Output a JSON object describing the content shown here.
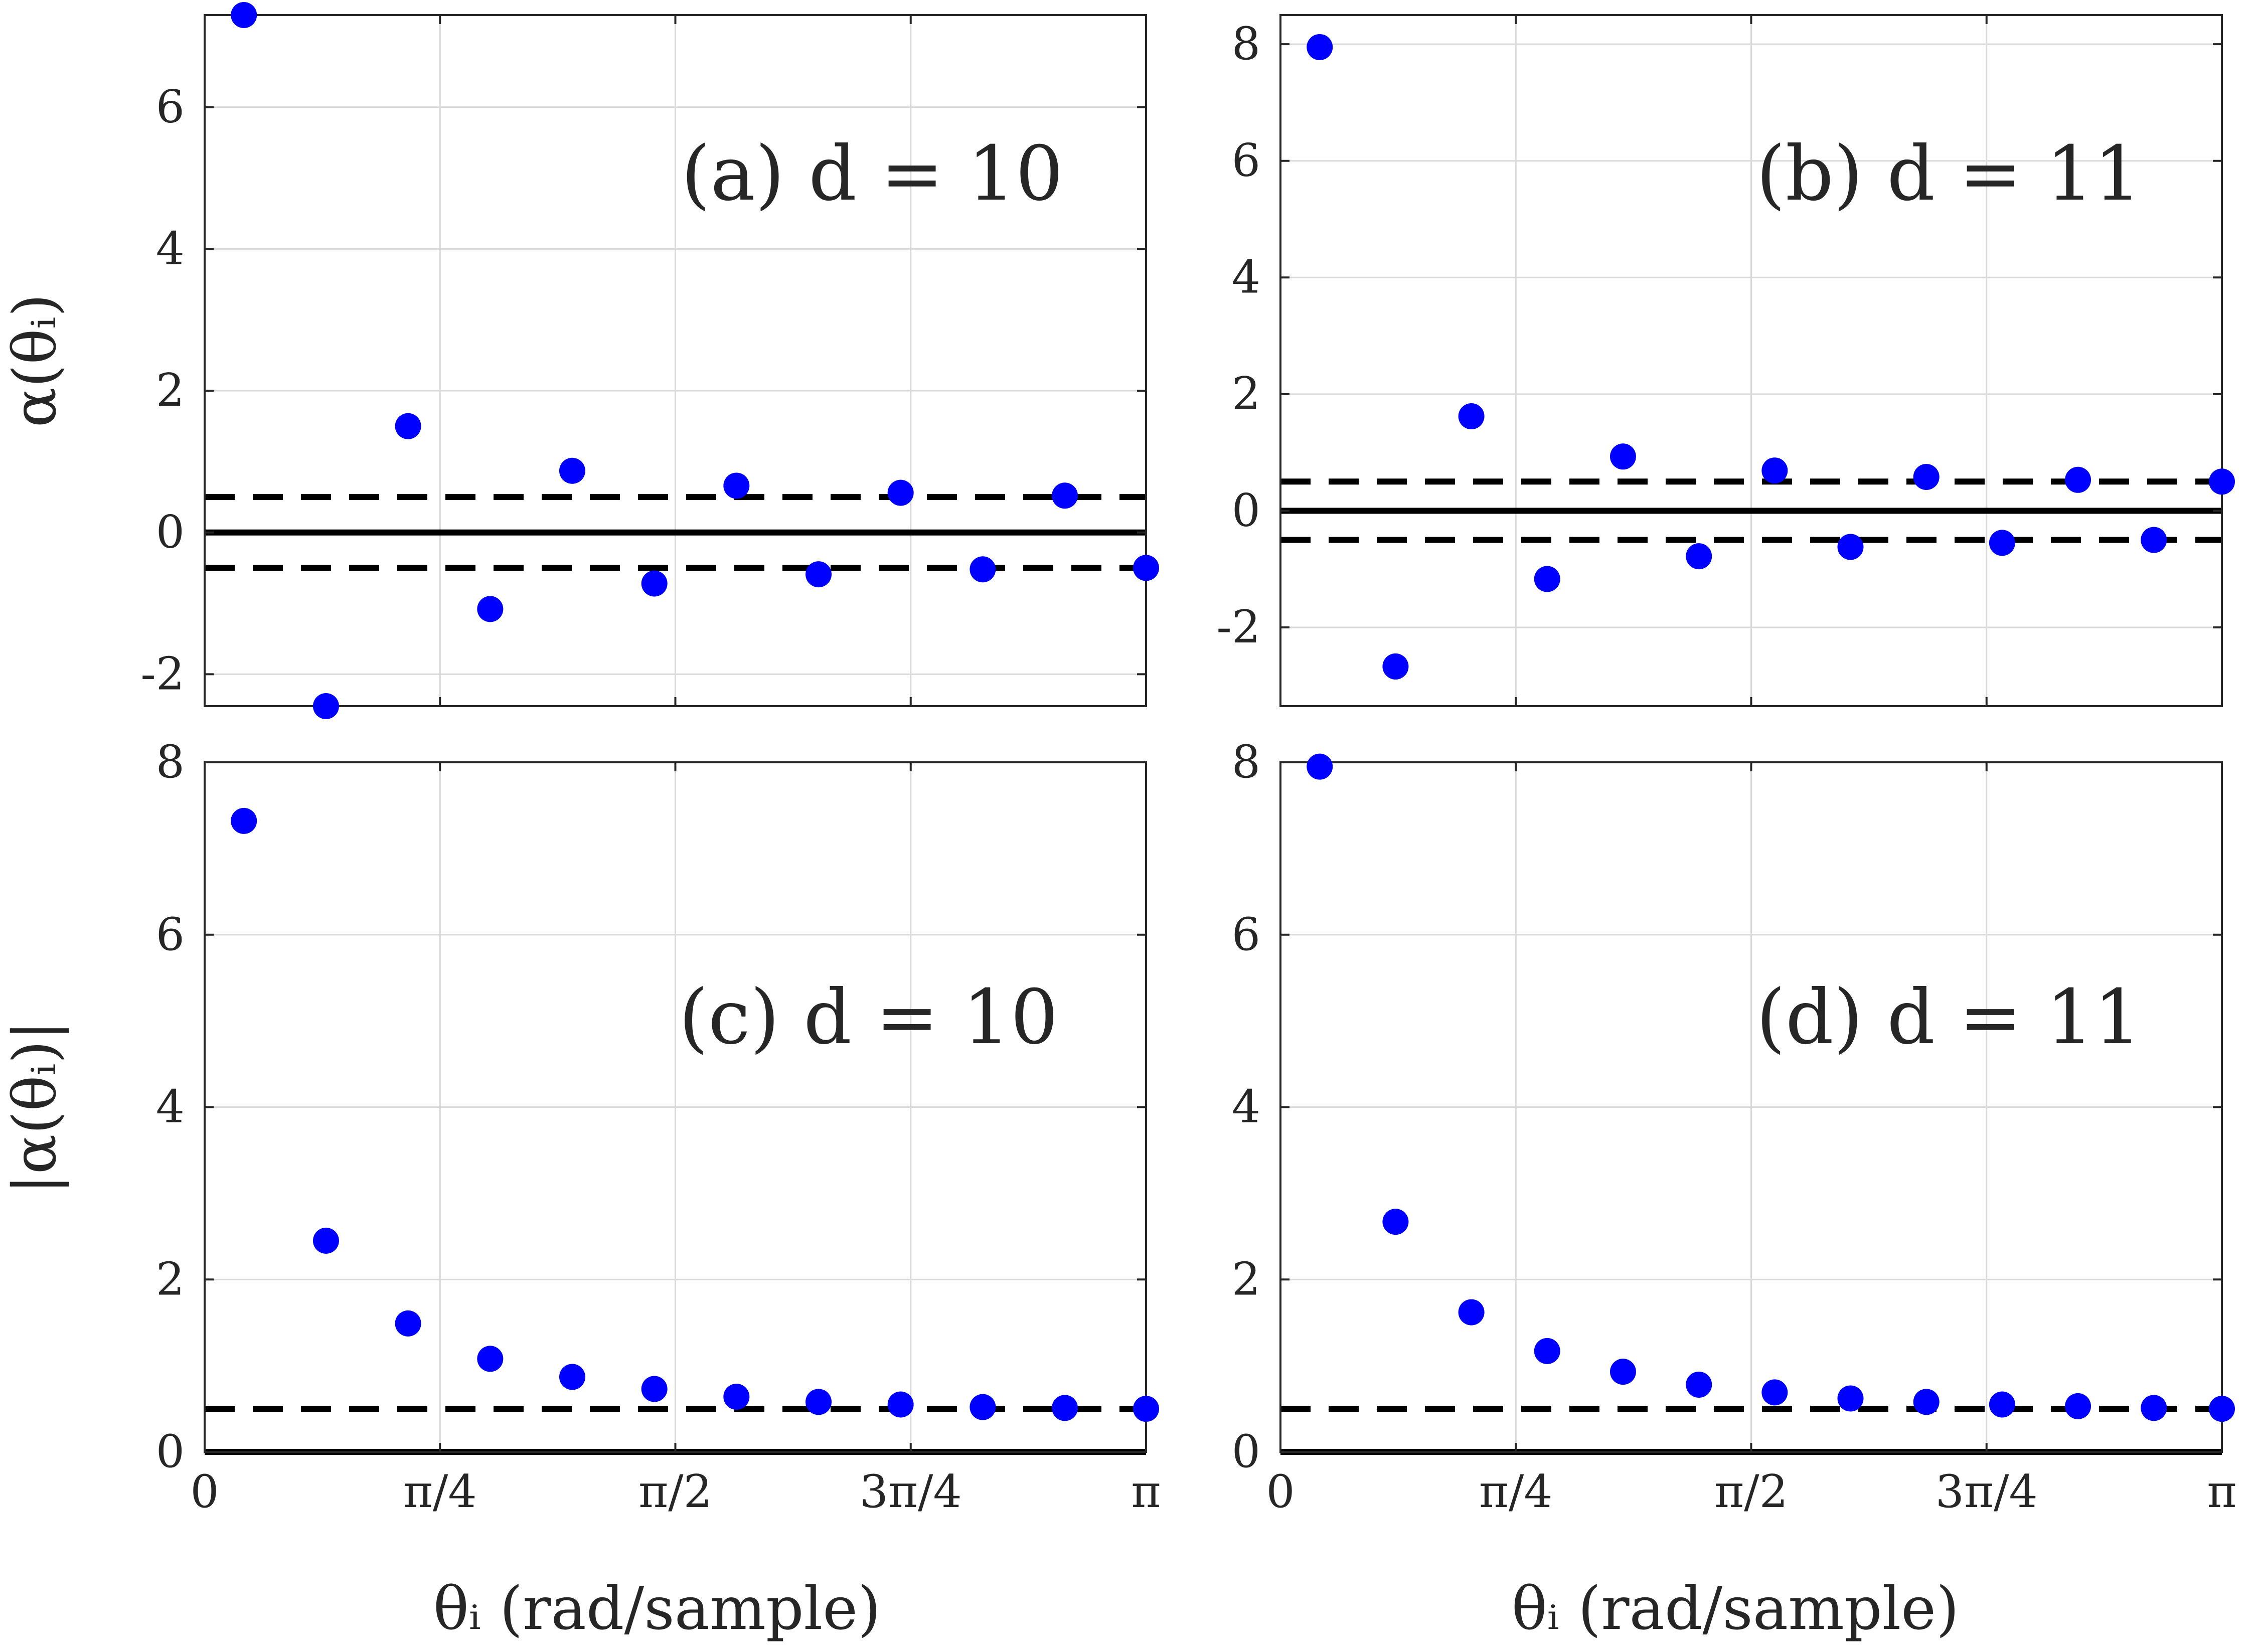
{
  "figure": {
    "xlabel": "θᵢ (rad/sample)",
    "xtick_labels": [
      "0",
      "π/4",
      "π/2",
      "3π/4",
      "π"
    ]
  },
  "chart_data": [
    {
      "type": "scatter",
      "panel": "a",
      "title": "(a) d = 10",
      "ylabel": "α(θᵢ)",
      "x_units": "rad/sample",
      "xlim": [
        0,
        3.1416
      ],
      "ylim": [
        -2.45,
        7.3
      ],
      "xticks": [
        0,
        0.7854,
        1.5708,
        2.3562,
        3.1416
      ],
      "xtick_labels": [
        "0",
        "π/4",
        "π/2",
        "3π/4",
        "π"
      ],
      "yticks": [
        -2,
        0,
        2,
        4,
        6
      ],
      "ytick_labels": [
        "-2",
        "0",
        "2",
        "4",
        "6"
      ],
      "grid": true,
      "marker_color": "#0000ff",
      "series": [
        {
          "name": "α(θᵢ)",
          "x": [
            0.1309,
            0.405,
            0.6789,
            0.9529,
            1.2268,
            1.5008,
            1.7747,
            2.0487,
            2.3226,
            2.5966,
            2.8706,
            3.1416
          ],
          "y": [
            7.3,
            -2.45,
            1.5,
            -1.08,
            0.87,
            -0.72,
            0.66,
            -0.59,
            0.56,
            -0.52,
            0.52,
            -0.5
          ]
        }
      ],
      "reference_lines": [
        {
          "style": "solid",
          "y": 0
        },
        {
          "style": "dashed",
          "y": 0.5
        },
        {
          "style": "dashed",
          "y": -0.5
        }
      ]
    },
    {
      "type": "scatter",
      "panel": "b",
      "title": "(b) d = 11",
      "ylabel": "",
      "x_units": "rad/sample",
      "xlim": [
        0,
        3.1416
      ],
      "ylim": [
        -3.35,
        8.5
      ],
      "xticks": [
        0,
        0.7854,
        1.5708,
        2.3562,
        3.1416
      ],
      "xtick_labels": [
        "0",
        "π/4",
        "π/2",
        "3π/4",
        "π"
      ],
      "yticks": [
        -2,
        0,
        2,
        4,
        6,
        8
      ],
      "ytick_labels": [
        "-2",
        "0",
        "2",
        "4",
        "6",
        "8"
      ],
      "grid": true,
      "marker_color": "#0000ff",
      "series": [
        {
          "name": "α(θᵢ)",
          "x": [
            0.1309,
            0.384,
            0.637,
            0.89,
            1.1431,
            1.3963,
            1.6492,
            1.9022,
            2.1553,
            2.4083,
            2.6613,
            2.9144,
            3.1416
          ],
          "y": [
            7.95,
            -2.67,
            1.62,
            -1.17,
            0.93,
            -0.78,
            0.69,
            -0.62,
            0.58,
            -0.55,
            0.53,
            -0.5,
            0.5
          ]
        }
      ],
      "reference_lines": [
        {
          "style": "solid",
          "y": 0
        },
        {
          "style": "dashed",
          "y": 0.5
        },
        {
          "style": "dashed",
          "y": -0.5
        }
      ]
    },
    {
      "type": "scatter",
      "panel": "c",
      "title": "(c) d = 10",
      "ylabel": "|α(θᵢ)|",
      "x_units": "rad/sample",
      "xlim": [
        0,
        3.1416
      ],
      "ylim": [
        0,
        8
      ],
      "xticks": [
        0,
        0.7854,
        1.5708,
        2.3562,
        3.1416
      ],
      "xtick_labels": [
        "0",
        "π/4",
        "π/2",
        "3π/4",
        "π"
      ],
      "yticks": [
        0,
        2,
        4,
        6,
        8
      ],
      "ytick_labels": [
        "0",
        "2",
        "4",
        "6",
        "8"
      ],
      "grid": true,
      "marker_color": "#0000ff",
      "series": [
        {
          "name": "|α(θᵢ)|",
          "x": [
            0.1309,
            0.405,
            0.6789,
            0.9529,
            1.2268,
            1.5008,
            1.7747,
            2.0487,
            2.3226,
            2.5966,
            2.8706,
            3.1416
          ],
          "y": [
            7.32,
            2.45,
            1.49,
            1.08,
            0.87,
            0.73,
            0.64,
            0.58,
            0.55,
            0.52,
            0.51,
            0.5
          ]
        }
      ],
      "reference_lines": [
        {
          "style": "solid",
          "y": 0
        },
        {
          "style": "dashed",
          "y": 0.5
        }
      ]
    },
    {
      "type": "scatter",
      "panel": "d",
      "title": "(d) d = 11",
      "ylabel": "",
      "x_units": "rad/sample",
      "xlim": [
        0,
        3.1416
      ],
      "ylim": [
        0,
        8
      ],
      "xticks": [
        0,
        0.7854,
        1.5708,
        2.3562,
        3.1416
      ],
      "xtick_labels": [
        "0",
        "π/4",
        "π/2",
        "3π/4",
        "π"
      ],
      "yticks": [
        0,
        2,
        4,
        6,
        8
      ],
      "ytick_labels": [
        "0",
        "2",
        "4",
        "6",
        "8"
      ],
      "grid": true,
      "marker_color": "#0000ff",
      "series": [
        {
          "name": "|α(θᵢ)|",
          "x": [
            0.1309,
            0.384,
            0.637,
            0.89,
            1.1431,
            1.3963,
            1.6492,
            1.9022,
            2.1553,
            2.4083,
            2.6613,
            2.9144,
            3.1416
          ],
          "y": [
            7.95,
            2.67,
            1.62,
            1.17,
            0.93,
            0.78,
            0.69,
            0.62,
            0.58,
            0.55,
            0.53,
            0.51,
            0.5
          ]
        }
      ],
      "reference_lines": [
        {
          "style": "solid",
          "y": 0
        },
        {
          "style": "dashed",
          "y": 0.5
        }
      ]
    }
  ]
}
